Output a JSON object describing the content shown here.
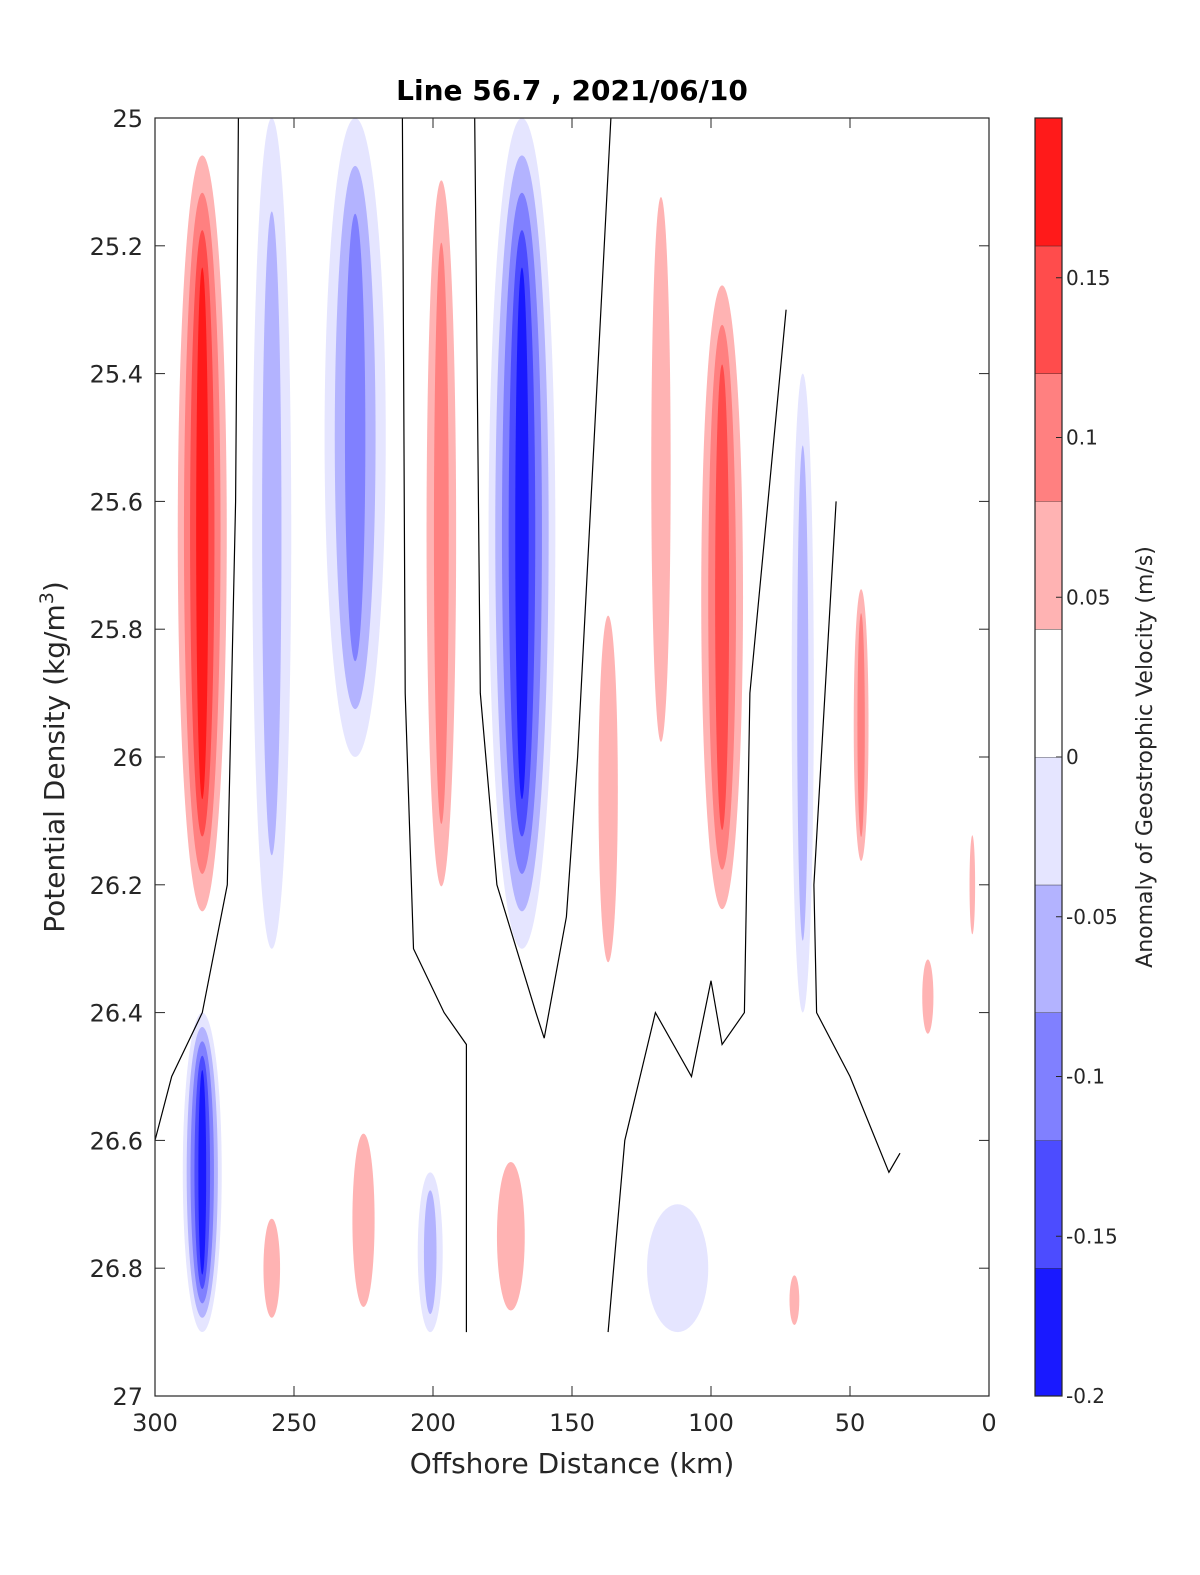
{
  "chart_data": {
    "type": "heatmap",
    "subtype": "filled-contour section",
    "title": "Line 56.7 , 2021/06/10",
    "xlabel": "Offshore Distance (km)",
    "ylabel_text": "Potential Density (kg/m",
    "ylabel_sup": "3",
    "ylabel_close": ")",
    "colorbar_label": "Anomaly of Geostrophic Velocity (m/s)",
    "xlim": [
      300,
      0
    ],
    "x_reversed": true,
    "ylim": [
      25,
      27
    ],
    "y_reversed": true,
    "x_ticks": [
      "300",
      "250",
      "200",
      "150",
      "100",
      "50",
      "0"
    ],
    "y_ticks": [
      "25",
      "25.2",
      "25.4",
      "25.6",
      "25.8",
      "26",
      "26.2",
      "26.4",
      "26.6",
      "26.8",
      "27"
    ],
    "colorbar_range": [
      -0.2,
      0.2
    ],
    "colorbar_ticks": [
      "-0.2",
      "-0.15",
      "-0.1",
      "-0.05",
      "0",
      "0.05",
      "0.1",
      "0.15"
    ],
    "colorbar_levels": 10,
    "colors": {
      "negative": "#0000ff",
      "positive": "#ff0000",
      "zero": "#ffffff",
      "contour_line": "#000000",
      "axis": "#262626"
    },
    "features": [
      {
        "kind": "anomaly",
        "sign": "positive",
        "x_center": 283,
        "x_width": 22,
        "y_top": 25.0,
        "y_bottom": 26.3,
        "peak": 0.19
      },
      {
        "kind": "anomaly",
        "sign": "negative",
        "x_center": 228,
        "x_width": 22,
        "y_top": 25.0,
        "y_bottom": 26.0,
        "peak": -0.09
      },
      {
        "kind": "anomaly",
        "sign": "negative",
        "x_center": 258,
        "x_width": 14,
        "y_top": 25.0,
        "y_bottom": 26.3,
        "peak": -0.045
      },
      {
        "kind": "anomaly",
        "sign": "positive",
        "x_center": 197,
        "x_width": 16,
        "y_top": 25.0,
        "y_bottom": 26.3,
        "peak": 0.11
      },
      {
        "kind": "anomaly",
        "sign": "negative",
        "x_center": 168,
        "x_width": 24,
        "y_top": 25.0,
        "y_bottom": 26.3,
        "peak": -0.17
      },
      {
        "kind": "anomaly",
        "sign": "positive",
        "x_center": 118,
        "x_width": 14,
        "y_top": 25.0,
        "y_bottom": 26.1,
        "peak": 0.04
      },
      {
        "kind": "anomaly",
        "sign": "positive",
        "x_center": 96,
        "x_width": 20,
        "y_top": 25.2,
        "y_bottom": 26.3,
        "peak": 0.15
      },
      {
        "kind": "anomaly",
        "sign": "negative",
        "x_center": 67,
        "x_width": 8,
        "y_top": 25.4,
        "y_bottom": 26.4,
        "peak": -0.06
      },
      {
        "kind": "anomaly",
        "sign": "positive",
        "x_center": 46,
        "x_width": 8,
        "y_top": 25.7,
        "y_bottom": 26.2,
        "peak": 0.08
      },
      {
        "kind": "anomaly",
        "sign": "positive",
        "x_center": 137,
        "x_width": 14,
        "y_top": 25.7,
        "y_bottom": 26.4,
        "peak": 0.045
      },
      {
        "kind": "anomaly",
        "sign": "positive",
        "x_center": 22,
        "x_width": 8,
        "y_top": 26.3,
        "y_bottom": 26.45,
        "peak": 0.04
      },
      {
        "kind": "anomaly",
        "sign": "positive",
        "x_center": 6,
        "x_width": 4,
        "y_top": 26.1,
        "y_bottom": 26.3,
        "peak": 0.05
      },
      {
        "kind": "anomaly",
        "sign": "negative",
        "x_center": 283,
        "x_width": 14,
        "y_top": 26.4,
        "y_bottom": 26.9,
        "peak": -0.17
      },
      {
        "kind": "anomaly",
        "sign": "positive",
        "x_center": 225,
        "x_width": 16,
        "y_top": 26.55,
        "y_bottom": 26.9,
        "peak": 0.065
      },
      {
        "kind": "anomaly",
        "sign": "positive",
        "x_center": 258,
        "x_width": 12,
        "y_top": 26.7,
        "y_bottom": 26.9,
        "peak": 0.05
      },
      {
        "kind": "anomaly",
        "sign": "negative",
        "x_center": 201,
        "x_width": 9,
        "y_top": 26.65,
        "y_bottom": 26.9,
        "peak": -0.055
      },
      {
        "kind": "anomaly",
        "sign": "positive",
        "x_center": 172,
        "x_width": 20,
        "y_top": 26.6,
        "y_bottom": 26.9,
        "peak": 0.065
      },
      {
        "kind": "anomaly",
        "sign": "negative",
        "x_center": 112,
        "x_width": 22,
        "y_top": 26.7,
        "y_bottom": 26.9,
        "peak": -0.04
      },
      {
        "kind": "anomaly",
        "sign": "positive",
        "x_center": 70,
        "x_width": 7,
        "y_top": 26.8,
        "y_bottom": 26.9,
        "peak": 0.045
      }
    ],
    "zero_contours": [
      [
        [
          270,
          25.0
        ],
        [
          271,
          25.6
        ],
        [
          274,
          26.2
        ],
        [
          283,
          26.4
        ],
        [
          294,
          26.5
        ],
        [
          300,
          26.6
        ]
      ],
      [
        [
          211,
          25.0
        ],
        [
          210,
          25.9
        ],
        [
          207,
          26.3
        ],
        [
          196,
          26.4
        ],
        [
          188,
          26.45
        ],
        [
          188,
          26.9
        ]
      ],
      [
        [
          185,
          25.0
        ],
        [
          183,
          25.9
        ],
        [
          177,
          26.2
        ],
        [
          163,
          26.4
        ],
        [
          160,
          26.44
        ],
        [
          152,
          26.25
        ],
        [
          148,
          26.0
        ],
        [
          136,
          25.0
        ]
      ],
      [
        [
          73,
          25.3
        ],
        [
          86,
          25.9
        ],
        [
          88,
          26.4
        ],
        [
          96,
          26.45
        ],
        [
          100,
          26.35
        ],
        [
          107,
          26.5
        ],
        [
          120,
          26.4
        ],
        [
          131,
          26.6
        ],
        [
          137,
          26.9
        ]
      ],
      [
        [
          55,
          25.6
        ],
        [
          63,
          26.2
        ],
        [
          62,
          26.4
        ],
        [
          50,
          26.5
        ],
        [
          36,
          26.65
        ],
        [
          32,
          26.62
        ]
      ]
    ]
  }
}
